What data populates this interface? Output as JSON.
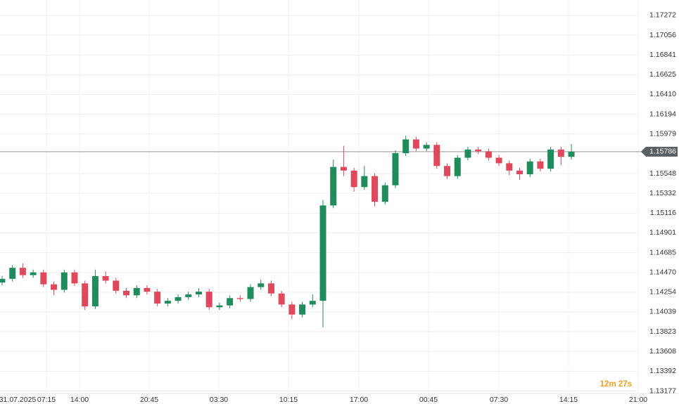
{
  "chart_data": {
    "type": "candlestick",
    "series": {
      "open": [
        1.1436,
        1.144,
        1.1452,
        1.1444,
        1.1447,
        1.1434,
        1.1428,
        1.1447,
        1.1435,
        1.141,
        1.1443,
        1.1438,
        1.1427,
        1.1422,
        1.143,
        1.1426,
        1.1413,
        1.1416,
        1.142,
        1.1423,
        1.1426,
        1.1409,
        1.1411,
        1.1419,
        1.1418,
        1.1431,
        1.1435,
        1.1424,
        1.1412,
        1.1401,
        1.1412,
        1.1416,
        1.152,
        1.1562,
        1.1558,
        1.154,
        1.1552,
        1.1524,
        1.1542,
        1.1577,
        1.1592,
        1.1582,
        1.1586,
        1.1563,
        1.1552,
        1.1572,
        1.1581,
        1.1579,
        1.1572,
        1.1566,
        1.1558,
        1.1554,
        1.1568,
        1.156,
        1.1581,
        1.1573
      ],
      "high": [
        1.1443,
        1.1455,
        1.1457,
        1.145,
        1.145,
        1.1437,
        1.145,
        1.145,
        1.1438,
        1.145,
        1.1448,
        1.1441,
        1.143,
        1.1433,
        1.1433,
        1.1429,
        1.1419,
        1.1423,
        1.1426,
        1.143,
        1.1429,
        1.1414,
        1.1422,
        1.1422,
        1.1434,
        1.1439,
        1.1438,
        1.1427,
        1.1415,
        1.1415,
        1.1423,
        1.1526,
        1.157,
        1.1585,
        1.1561,
        1.1563,
        1.1555,
        1.1545,
        1.158,
        1.1596,
        1.1595,
        1.1589,
        1.1589,
        1.1566,
        1.1575,
        1.1584,
        1.1584,
        1.1582,
        1.1575,
        1.1569,
        1.1561,
        1.1571,
        1.1571,
        1.1584,
        1.1584,
        1.1587
      ],
      "low": [
        1.1433,
        1.1437,
        1.1441,
        1.1441,
        1.1431,
        1.1422,
        1.1425,
        1.1432,
        1.1406,
        1.1407,
        1.1435,
        1.1424,
        1.1419,
        1.1419,
        1.1423,
        1.141,
        1.141,
        1.1413,
        1.1417,
        1.142,
        1.1406,
        1.1406,
        1.1408,
        1.1415,
        1.1415,
        1.1428,
        1.1421,
        1.1409,
        1.1396,
        1.1398,
        1.1409,
        1.1387,
        1.1517,
        1.1552,
        1.1535,
        1.1537,
        1.1519,
        1.1521,
        1.1539,
        1.1574,
        1.1579,
        1.1579,
        1.156,
        1.1549,
        1.1549,
        1.1569,
        1.1576,
        1.1569,
        1.1563,
        1.1553,
        1.1548,
        1.1551,
        1.1557,
        1.1557,
        1.1564,
        1.157
      ],
      "close": [
        1.144,
        1.1452,
        1.1444,
        1.1447,
        1.1434,
        1.1428,
        1.1447,
        1.1435,
        1.141,
        1.1443,
        1.1438,
        1.1427,
        1.1422,
        1.143,
        1.1426,
        1.1413,
        1.1416,
        1.142,
        1.1423,
        1.1426,
        1.1409,
        1.1411,
        1.1419,
        1.1418,
        1.1431,
        1.1435,
        1.1424,
        1.1412,
        1.1401,
        1.1412,
        1.1416,
        1.152,
        1.1562,
        1.1558,
        1.154,
        1.1552,
        1.1524,
        1.1542,
        1.1577,
        1.1592,
        1.1582,
        1.1586,
        1.1563,
        1.1552,
        1.1572,
        1.1581,
        1.1579,
        1.1572,
        1.1566,
        1.1558,
        1.1554,
        1.1568,
        1.156,
        1.1581,
        1.1573,
        1.15786
      ]
    },
    "up_color": "#1f8c5c",
    "down_color": "#e0485c",
    "ylim": [
      1.1315,
      1.1744
    ],
    "yticks": [
      1.17272,
      1.17056,
      1.16841,
      1.16625,
      {
        "value": 1.1641,
        "label": "1.16410"
      },
      1.16194,
      1.15979,
      1.15548,
      1.15332,
      1.15116,
      1.14901,
      1.14685,
      {
        "value": 1.1447,
        "label": "1.14470"
      },
      1.14254,
      1.14039,
      1.13823,
      1.13608,
      1.13392,
      1.13177
    ],
    "xticks": [
      "31.07.2025",
      "07:15",
      "14:00",
      "20:45",
      "03:30",
      "10:15",
      "17:00",
      "00:45",
      "07:30",
      "14:15",
      "21:00"
    ],
    "grid": true,
    "last_price": 1.15786,
    "countdown": "12m 27s"
  }
}
